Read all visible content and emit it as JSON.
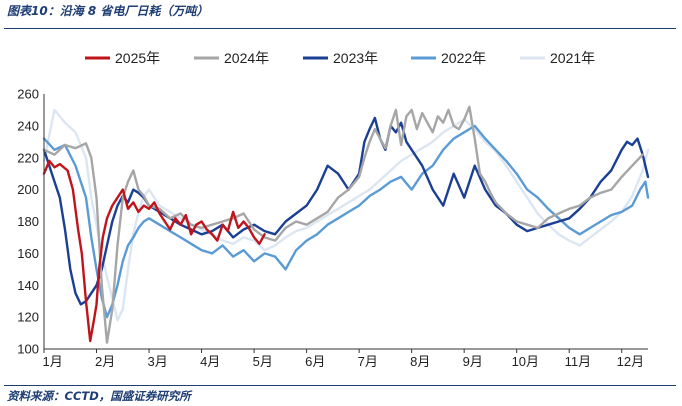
{
  "header": {
    "title": "图表10：沿海 8 省电厂日耗（万吨）"
  },
  "footer": {
    "source": "资料来源：CCTD，国盛证券研究所"
  },
  "chart_data": {
    "type": "line",
    "title": "图表10：沿海 8 省电厂日耗（万吨）",
    "xlabel": "",
    "ylabel": "",
    "x_ticks": [
      "1月",
      "2月",
      "3月",
      "4月",
      "5月",
      "6月",
      "7月",
      "8月",
      "9月",
      "10月",
      "11月",
      "12月"
    ],
    "y_ticks": [
      "100",
      "120",
      "140",
      "160",
      "180",
      "200",
      "220",
      "240",
      "260"
    ],
    "ylim": [
      100,
      260
    ],
    "xlim": [
      0,
      11.5
    ],
    "grid": false,
    "legend_position": "top",
    "series": [
      {
        "name": "2025年",
        "color": "#c0141c",
        "x": [
          0,
          0.1,
          0.2,
          0.3,
          0.45,
          0.55,
          0.65,
          0.72,
          0.8,
          0.88,
          0.95,
          1.0,
          1.05,
          1.12,
          1.2,
          1.3,
          1.4,
          1.5,
          1.6,
          1.7,
          1.8,
          1.9,
          2.0,
          2.1,
          2.2,
          2.3,
          2.4,
          2.5,
          2.6,
          2.7,
          2.8,
          2.9,
          3.0,
          3.1,
          3.2,
          3.3,
          3.4,
          3.5,
          3.6,
          3.7,
          3.8,
          3.9,
          4.0,
          4.1,
          4.2
        ],
        "values": [
          210,
          218,
          214,
          216,
          212,
          200,
          175,
          160,
          130,
          105,
          118,
          128,
          150,
          170,
          182,
          190,
          195,
          200,
          188,
          192,
          186,
          190,
          188,
          192,
          185,
          180,
          175,
          182,
          178,
          184,
          172,
          178,
          180,
          175,
          172,
          168,
          178,
          174,
          186,
          176,
          180,
          176,
          170,
          166,
          172
        ]
      },
      {
        "name": "2024年",
        "color": "#a6a6a6",
        "x": [
          0,
          0.2,
          0.4,
          0.6,
          0.8,
          0.9,
          1.0,
          1.1,
          1.2,
          1.3,
          1.4,
          1.5,
          1.6,
          1.7,
          1.8,
          1.9,
          2.0,
          2.2,
          2.4,
          2.6,
          2.8,
          3.0,
          3.2,
          3.4,
          3.6,
          3.8,
          4.0,
          4.2,
          4.4,
          4.6,
          4.8,
          5.0,
          5.2,
          5.4,
          5.6,
          5.8,
          6.0,
          6.1,
          6.2,
          6.3,
          6.4,
          6.5,
          6.6,
          6.7,
          6.8,
          6.9,
          7.0,
          7.1,
          7.2,
          7.3,
          7.4,
          7.5,
          7.6,
          7.7,
          7.8,
          7.9,
          8.0,
          8.1,
          8.2,
          8.3,
          8.4,
          8.5,
          8.6,
          8.8,
          9.0,
          9.2,
          9.4,
          9.6,
          9.8,
          10.0,
          10.2,
          10.4,
          10.6,
          10.8,
          11.0,
          11.2,
          11.4
        ],
        "values": [
          225,
          222,
          228,
          226,
          229,
          220,
          195,
          140,
          104,
          125,
          165,
          195,
          205,
          212,
          200,
          196,
          190,
          188,
          182,
          185,
          178,
          176,
          178,
          180,
          182,
          185,
          175,
          170,
          168,
          176,
          180,
          178,
          182,
          186,
          195,
          200,
          208,
          220,
          230,
          238,
          232,
          226,
          240,
          250,
          228,
          246,
          250,
          238,
          248,
          242,
          236,
          246,
          242,
          250,
          240,
          238,
          244,
          252,
          232,
          210,
          205,
          198,
          192,
          185,
          180,
          178,
          176,
          182,
          185,
          188,
          190,
          195,
          198,
          200,
          208,
          215,
          222
        ]
      },
      {
        "name": "2023年",
        "color": "#1a3f93",
        "x": [
          0,
          0.1,
          0.2,
          0.3,
          0.4,
          0.5,
          0.6,
          0.7,
          0.8,
          0.9,
          1.0,
          1.1,
          1.2,
          1.3,
          1.4,
          1.5,
          1.6,
          1.7,
          1.8,
          1.9,
          2.0,
          2.2,
          2.4,
          2.6,
          2.8,
          3.0,
          3.2,
          3.4,
          3.6,
          3.8,
          4.0,
          4.2,
          4.4,
          4.6,
          4.8,
          5.0,
          5.2,
          5.4,
          5.6,
          5.8,
          6.0,
          6.1,
          6.2,
          6.3,
          6.4,
          6.5,
          6.6,
          6.7,
          6.8,
          6.9,
          7.0,
          7.2,
          7.4,
          7.6,
          7.8,
          8.0,
          8.2,
          8.4,
          8.6,
          8.8,
          9.0,
          9.2,
          9.4,
          9.6,
          9.8,
          10.0,
          10.2,
          10.4,
          10.6,
          10.8,
          11.0,
          11.1,
          11.2,
          11.3,
          11.4,
          11.5
        ],
        "values": [
          225,
          215,
          205,
          195,
          175,
          150,
          135,
          128,
          130,
          135,
          140,
          150,
          165,
          180,
          190,
          196,
          192,
          200,
          198,
          195,
          190,
          186,
          182,
          178,
          175,
          172,
          174,
          178,
          170,
          175,
          178,
          174,
          172,
          180,
          185,
          190,
          200,
          215,
          210,
          200,
          210,
          230,
          238,
          245,
          232,
          225,
          240,
          236,
          242,
          230,
          225,
          215,
          200,
          190,
          210,
          195,
          215,
          200,
          190,
          185,
          178,
          174,
          176,
          178,
          180,
          182,
          188,
          195,
          205,
          212,
          225,
          230,
          228,
          232,
          222,
          208
        ]
      },
      {
        "name": "2022年",
        "color": "#5b9bd5",
        "x": [
          0,
          0.2,
          0.4,
          0.6,
          0.8,
          0.9,
          1.0,
          1.1,
          1.2,
          1.3,
          1.4,
          1.5,
          1.6,
          1.7,
          1.8,
          1.9,
          2.0,
          2.2,
          2.4,
          2.6,
          2.8,
          3.0,
          3.2,
          3.4,
          3.6,
          3.8,
          4.0,
          4.2,
          4.4,
          4.6,
          4.8,
          5.0,
          5.2,
          5.4,
          5.6,
          5.8,
          6.0,
          6.2,
          6.4,
          6.6,
          6.8,
          7.0,
          7.2,
          7.4,
          7.6,
          7.8,
          8.0,
          8.2,
          8.4,
          8.6,
          8.8,
          9.0,
          9.2,
          9.4,
          9.6,
          9.8,
          10.0,
          10.2,
          10.4,
          10.6,
          10.8,
          11.0,
          11.2,
          11.35,
          11.45,
          11.5
        ],
        "values": [
          232,
          225,
          228,
          215,
          195,
          170,
          150,
          132,
          120,
          128,
          140,
          155,
          165,
          170,
          176,
          180,
          182,
          178,
          174,
          170,
          166,
          162,
          160,
          165,
          158,
          162,
          155,
          160,
          158,
          150,
          162,
          168,
          172,
          178,
          182,
          186,
          190,
          196,
          200,
          205,
          208,
          200,
          210,
          215,
          225,
          232,
          236,
          240,
          232,
          225,
          218,
          210,
          200,
          195,
          188,
          182,
          176,
          172,
          176,
          180,
          184,
          186,
          190,
          200,
          205,
          195
        ]
      },
      {
        "name": "2021年",
        "color": "#dce6f2",
        "x": [
          0,
          0.2,
          0.4,
          0.6,
          0.8,
          0.9,
          1.0,
          1.1,
          1.2,
          1.3,
          1.4,
          1.5,
          1.6,
          1.7,
          1.8,
          1.9,
          2.0,
          2.2,
          2.4,
          2.6,
          2.8,
          3.0,
          3.2,
          3.4,
          3.6,
          3.8,
          4.0,
          4.2,
          4.4,
          4.6,
          4.8,
          5.0,
          5.2,
          5.4,
          5.6,
          5.8,
          6.0,
          6.2,
          6.4,
          6.6,
          6.8,
          7.0,
          7.2,
          7.4,
          7.6,
          7.8,
          8.0,
          8.2,
          8.4,
          8.6,
          8.8,
          9.0,
          9.2,
          9.4,
          9.6,
          9.8,
          10.0,
          10.2,
          10.4,
          10.6,
          10.8,
          11.0,
          11.2,
          11.4,
          11.5
        ],
        "values": [
          218,
          250,
          242,
          236,
          220,
          195,
          178,
          160,
          145,
          132,
          118,
          125,
          150,
          172,
          186,
          196,
          200,
          190,
          186,
          182,
          178,
          175,
          172,
          168,
          166,
          170,
          168,
          162,
          165,
          170,
          174,
          176,
          180,
          184,
          188,
          192,
          196,
          200,
          206,
          212,
          218,
          222,
          226,
          230,
          236,
          240,
          244,
          238,
          230,
          224,
          215,
          205,
          195,
          185,
          178,
          172,
          168,
          165,
          170,
          175,
          180,
          186,
          196,
          212,
          225
        ]
      }
    ]
  }
}
